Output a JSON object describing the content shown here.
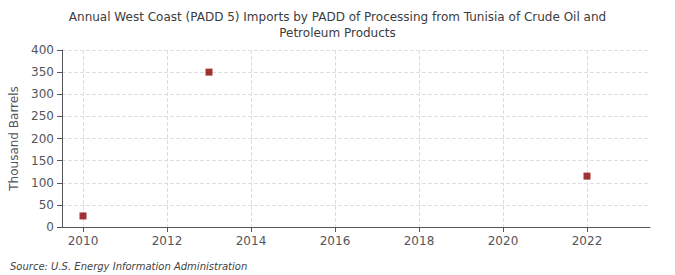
{
  "chart_data": {
    "type": "scatter",
    "title": "Annual West Coast (PADD 5) Imports by PADD of Processing from Tunisia of Crude Oil and\nPetroleum Products",
    "ylabel": "Thousand Barrels",
    "annotations": [
      "Source: U.S. Energy Information Administration"
    ],
    "x": [
      2010,
      2013,
      2022
    ],
    "values": [
      25,
      350,
      115
    ],
    "color": "#8B0000",
    "marker": "square",
    "xlim": [
      2009.5,
      2023.5
    ],
    "xticks": [
      2010,
      2012,
      2014,
      2016,
      2018,
      2020,
      2022
    ],
    "ylim": [
      0,
      400
    ],
    "yticks": [
      0,
      50,
      100,
      150,
      200,
      250,
      300,
      350,
      400
    ],
    "grid": true
  }
}
